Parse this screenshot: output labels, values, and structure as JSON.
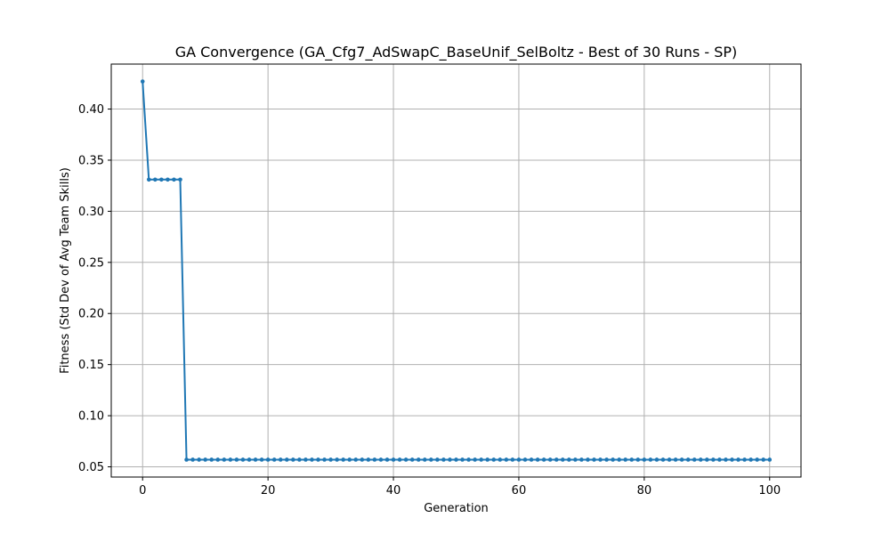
{
  "chart_data": {
    "type": "line",
    "title": "GA Convergence (GA_Cfg7_AdSwapC_BaseUnif_SelBoltz - Best of 30 Runs - SP)",
    "xlabel": "Generation",
    "ylabel": "Fitness (Std Dev of Avg Team Skills)",
    "xlim": [
      -5,
      105
    ],
    "ylim": [
      0.04,
      0.444
    ],
    "x_ticks": [
      0,
      20,
      40,
      60,
      80,
      100
    ],
    "y_ticks": [
      0.05,
      0.1,
      0.15,
      0.2,
      0.25,
      0.3,
      0.35,
      0.4
    ],
    "grid": true,
    "marker": "circle",
    "series": [
      {
        "name": "",
        "color": "#1f77b4",
        "x_start": 0,
        "x_end": 100,
        "segments": [
          {
            "from": 0,
            "to": 0,
            "y": 0.427
          },
          {
            "from": 1,
            "to": 6,
            "y": 0.331
          },
          {
            "from": 7,
            "to": 100,
            "y": 0.057
          }
        ]
      }
    ]
  }
}
